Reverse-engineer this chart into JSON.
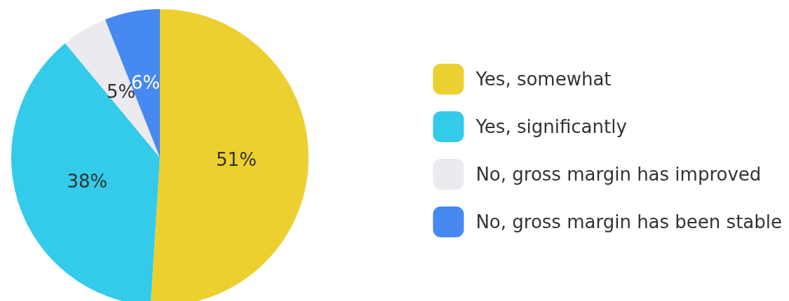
{
  "chart_data": {
    "type": "pie",
    "categories": [
      "Yes, somewhat",
      "Yes, significantly",
      "No, gross margin has improved",
      "No, gross margin has been stable"
    ],
    "values": [
      51,
      38,
      5,
      6
    ],
    "colors": [
      "#ecd030",
      "#33cbe9",
      "#ebeaee",
      "#4689f0"
    ],
    "value_labels": [
      "51%",
      "38%",
      "5%",
      "6%"
    ],
    "legend": "right"
  }
}
